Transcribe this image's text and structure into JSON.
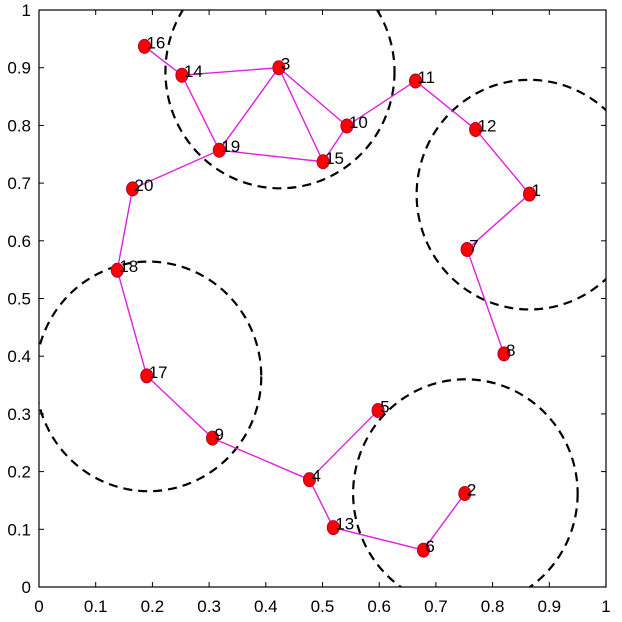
{
  "chart_data": {
    "type": "scatter",
    "title": "",
    "xlabel": "",
    "ylabel": "",
    "xlim": [
      0,
      1
    ],
    "ylim": [
      0,
      1
    ],
    "grid": false,
    "x_ticks": [
      "0",
      "0.1",
      "0.2",
      "0.3",
      "0.4",
      "0.5",
      "0.6",
      "0.7",
      "0.8",
      "0.9",
      "1"
    ],
    "y_ticks": [
      "0",
      "0.1",
      "0.2",
      "0.3",
      "0.4",
      "0.5",
      "0.6",
      "0.7",
      "0.8",
      "0.9",
      "1"
    ],
    "nodes": [
      {
        "id": "1",
        "x": 0.865,
        "y": 0.681
      },
      {
        "id": "2",
        "x": 0.751,
        "y": 0.162
      },
      {
        "id": "3",
        "x": 0.423,
        "y": 0.9
      },
      {
        "id": "4",
        "x": 0.477,
        "y": 0.186
      },
      {
        "id": "5",
        "x": 0.598,
        "y": 0.306
      },
      {
        "id": "6",
        "x": 0.678,
        "y": 0.064
      },
      {
        "id": "7",
        "x": 0.755,
        "y": 0.585
      },
      {
        "id": "8",
        "x": 0.82,
        "y": 0.404
      },
      {
        "id": "9",
        "x": 0.306,
        "y": 0.258
      },
      {
        "id": "10",
        "x": 0.543,
        "y": 0.799
      },
      {
        "id": "11",
        "x": 0.664,
        "y": 0.877
      },
      {
        "id": "12",
        "x": 0.77,
        "y": 0.793
      },
      {
        "id": "13",
        "x": 0.519,
        "y": 0.103
      },
      {
        "id": "14",
        "x": 0.252,
        "y": 0.887
      },
      {
        "id": "15",
        "x": 0.501,
        "y": 0.737
      },
      {
        "id": "16",
        "x": 0.186,
        "y": 0.937
      },
      {
        "id": "17",
        "x": 0.19,
        "y": 0.366
      },
      {
        "id": "18",
        "x": 0.138,
        "y": 0.549
      },
      {
        "id": "19",
        "x": 0.318,
        "y": 0.757
      },
      {
        "id": "20",
        "x": 0.165,
        "y": 0.69
      }
    ],
    "edges": [
      [
        "16",
        "14"
      ],
      [
        "14",
        "3"
      ],
      [
        "14",
        "19"
      ],
      [
        "3",
        "19"
      ],
      [
        "3",
        "15"
      ],
      [
        "3",
        "10"
      ],
      [
        "19",
        "15"
      ],
      [
        "15",
        "10"
      ],
      [
        "10",
        "11"
      ],
      [
        "11",
        "12"
      ],
      [
        "12",
        "1"
      ],
      [
        "1",
        "7"
      ],
      [
        "7",
        "8"
      ],
      [
        "19",
        "20"
      ],
      [
        "20",
        "18"
      ],
      [
        "18",
        "17"
      ],
      [
        "17",
        "9"
      ],
      [
        "9",
        "4"
      ],
      [
        "4",
        "5"
      ],
      [
        "4",
        "13"
      ],
      [
        "13",
        "6"
      ],
      [
        "6",
        "2"
      ]
    ],
    "circles": [
      {
        "cx": 0.425,
        "cy": 0.893,
        "r": 0.202
      },
      {
        "cx": 0.865,
        "cy": 0.68,
        "r": 0.199
      },
      {
        "cx": 0.193,
        "cy": 0.365,
        "r": 0.199
      },
      {
        "cx": 0.752,
        "cy": 0.162,
        "r": 0.198
      }
    ],
    "colors": {
      "node_fill": "#ff0000",
      "node_edge": "#b00030",
      "edge": "#e020e0",
      "circle": "#000000"
    }
  }
}
